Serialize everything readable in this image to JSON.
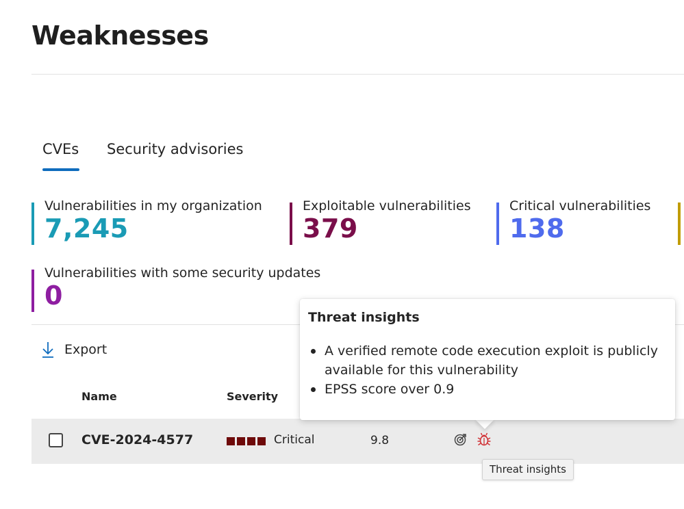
{
  "page": {
    "title": "Weaknesses"
  },
  "tabs": [
    {
      "label": "CVEs",
      "selected": true
    },
    {
      "label": "Security advisories",
      "selected": false
    }
  ],
  "stats": {
    "org": {
      "label": "Vulnerabilities in my organization",
      "value": "7,245",
      "color": "#1a9bb5"
    },
    "exploitable": {
      "label": "Exploitable vulnerabilities",
      "value": "379",
      "color": "#7a0e4a"
    },
    "critical": {
      "label": "Critical vulnerabilities",
      "value": "138",
      "color": "#4f6bed"
    },
    "next_color": "#c19c00",
    "updates": {
      "label": "Vulnerabilities with some security updates",
      "value": "0",
      "color": "#8e1ea1"
    }
  },
  "toolbar": {
    "export_label": "Export",
    "export_icon": "download-arrow-icon"
  },
  "table": {
    "columns": [
      "Name",
      "Severity"
    ],
    "rows": [
      {
        "name": "CVE-2024-4577",
        "severity": "Critical",
        "severity_color": "#6e0a0a",
        "severity_level": 4,
        "score": "9.8",
        "icons": [
          "target-icon",
          "bug-icon"
        ]
      }
    ]
  },
  "popover": {
    "title": "Threat insights",
    "items": [
      "A verified remote code execution exploit is publicly available for this vulnerability",
      "EPSS score over 0.9"
    ]
  },
  "tooltip": {
    "text": "Threat insights"
  },
  "colors": {
    "accent": "#0f6cbd",
    "bug_icon": "#d13438"
  }
}
